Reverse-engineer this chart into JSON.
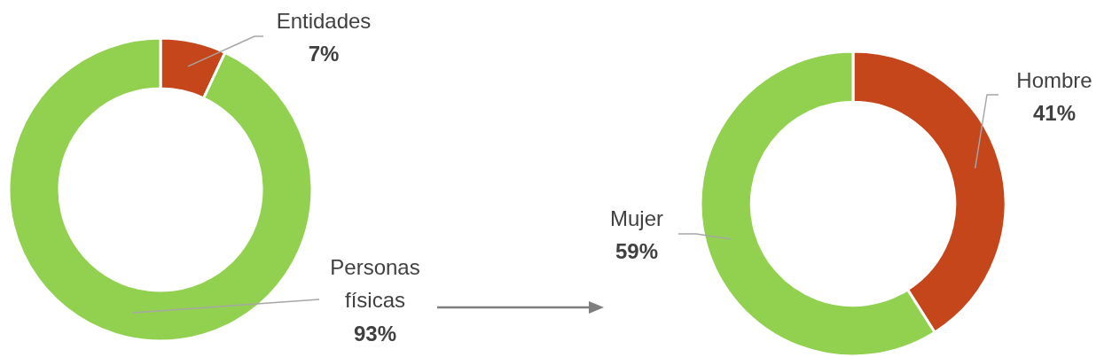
{
  "chart_data": [
    {
      "type": "donut",
      "categories": [
        "Entidades",
        "Personas físicas"
      ],
      "values": [
        7,
        93
      ],
      "colors": [
        "#c4461a",
        "#92d050"
      ],
      "value_labels": [
        "7%",
        "93%"
      ]
    },
    {
      "type": "donut",
      "categories": [
        "Hombre",
        "Mujer"
      ],
      "values": [
        41,
        59
      ],
      "colors": [
        "#c4461a",
        "#92d050"
      ],
      "value_labels": [
        "41%",
        "59%"
      ]
    }
  ]
}
